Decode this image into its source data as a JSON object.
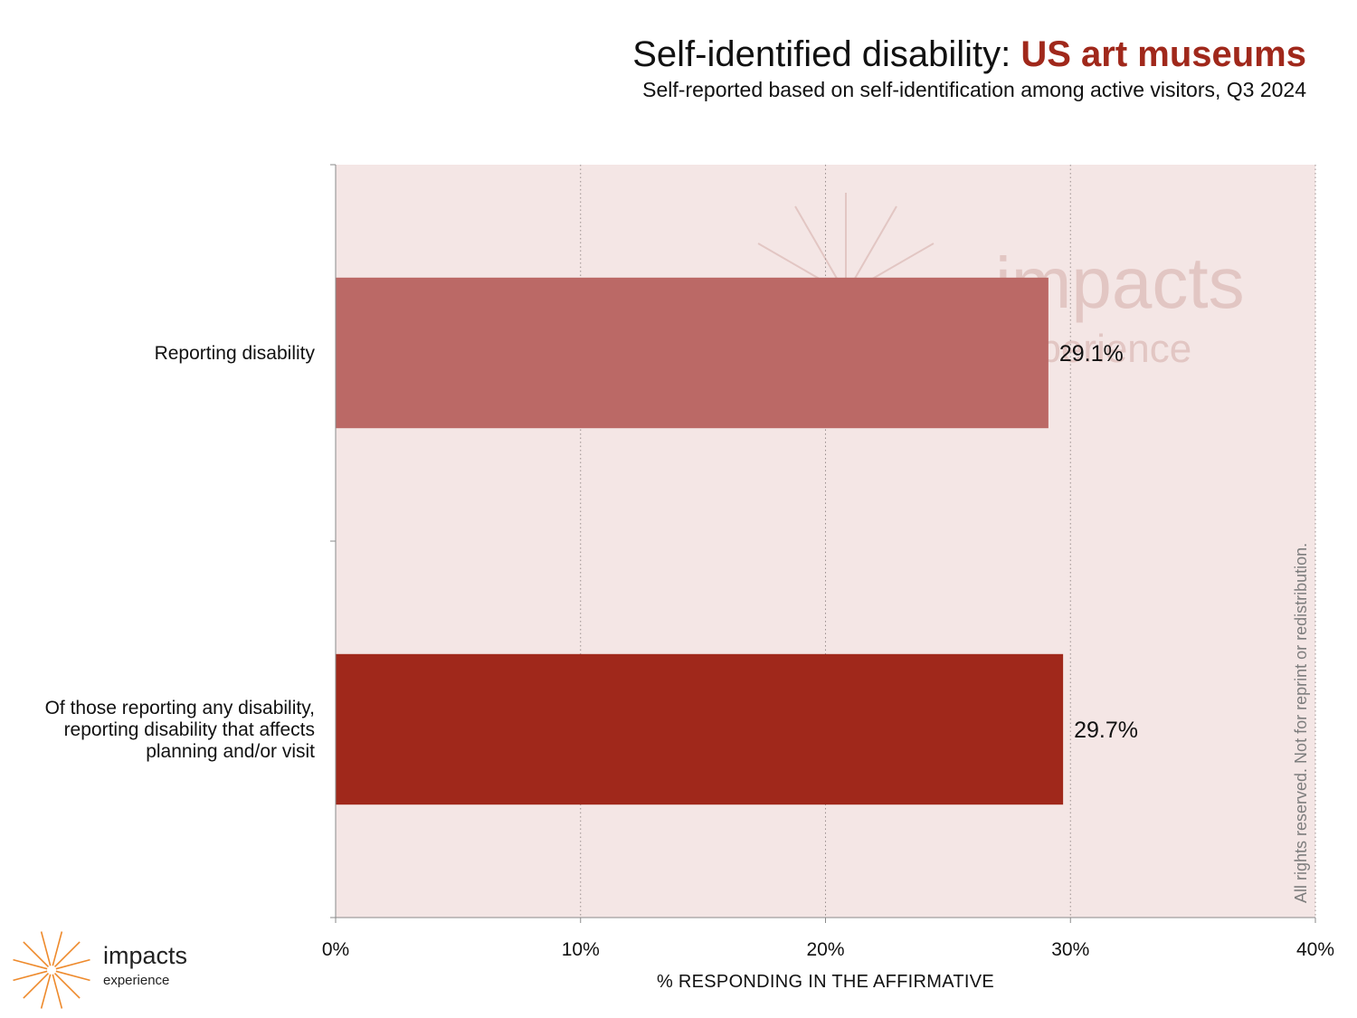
{
  "header": {
    "title_main": "Self-identified disability: ",
    "title_highlight": "US art museums",
    "subtitle": "Self-reported based on self-identification among active visitors, Q3 2024"
  },
  "colors": {
    "highlight": "#a0281b",
    "plot_background": "#f4e6e5",
    "bar_light": "#bb6966",
    "bar_dark": "#a0281b"
  },
  "chart_data": {
    "type": "bar",
    "orientation": "horizontal",
    "categories": [
      "Reporting disability",
      "Of those reporting any disability,\nreporting disability that affects\nplanning and/or visit"
    ],
    "values": [
      29.1,
      29.7
    ],
    "value_labels": [
      "29.1%",
      "29.7%"
    ],
    "bar_colors": [
      "#bb6966",
      "#a0281b"
    ],
    "xlim": [
      0,
      40
    ],
    "xticks": [
      0,
      10,
      20,
      30,
      40
    ],
    "xtick_labels": [
      "0%",
      "10%",
      "20%",
      "30%",
      "40%"
    ],
    "xlabel": "% RESPONDING IN THE AFFIRMATIVE",
    "ylabel": "",
    "grid": "vertical dotted",
    "legend": "none"
  },
  "watermark": {
    "word": "impacts",
    "sub": "experience"
  },
  "copyright": "All rights reserved. Not for reprint or redistribution.",
  "logo": {
    "word": "impacts",
    "sub": "experience",
    "icon": "sunburst-icon"
  }
}
